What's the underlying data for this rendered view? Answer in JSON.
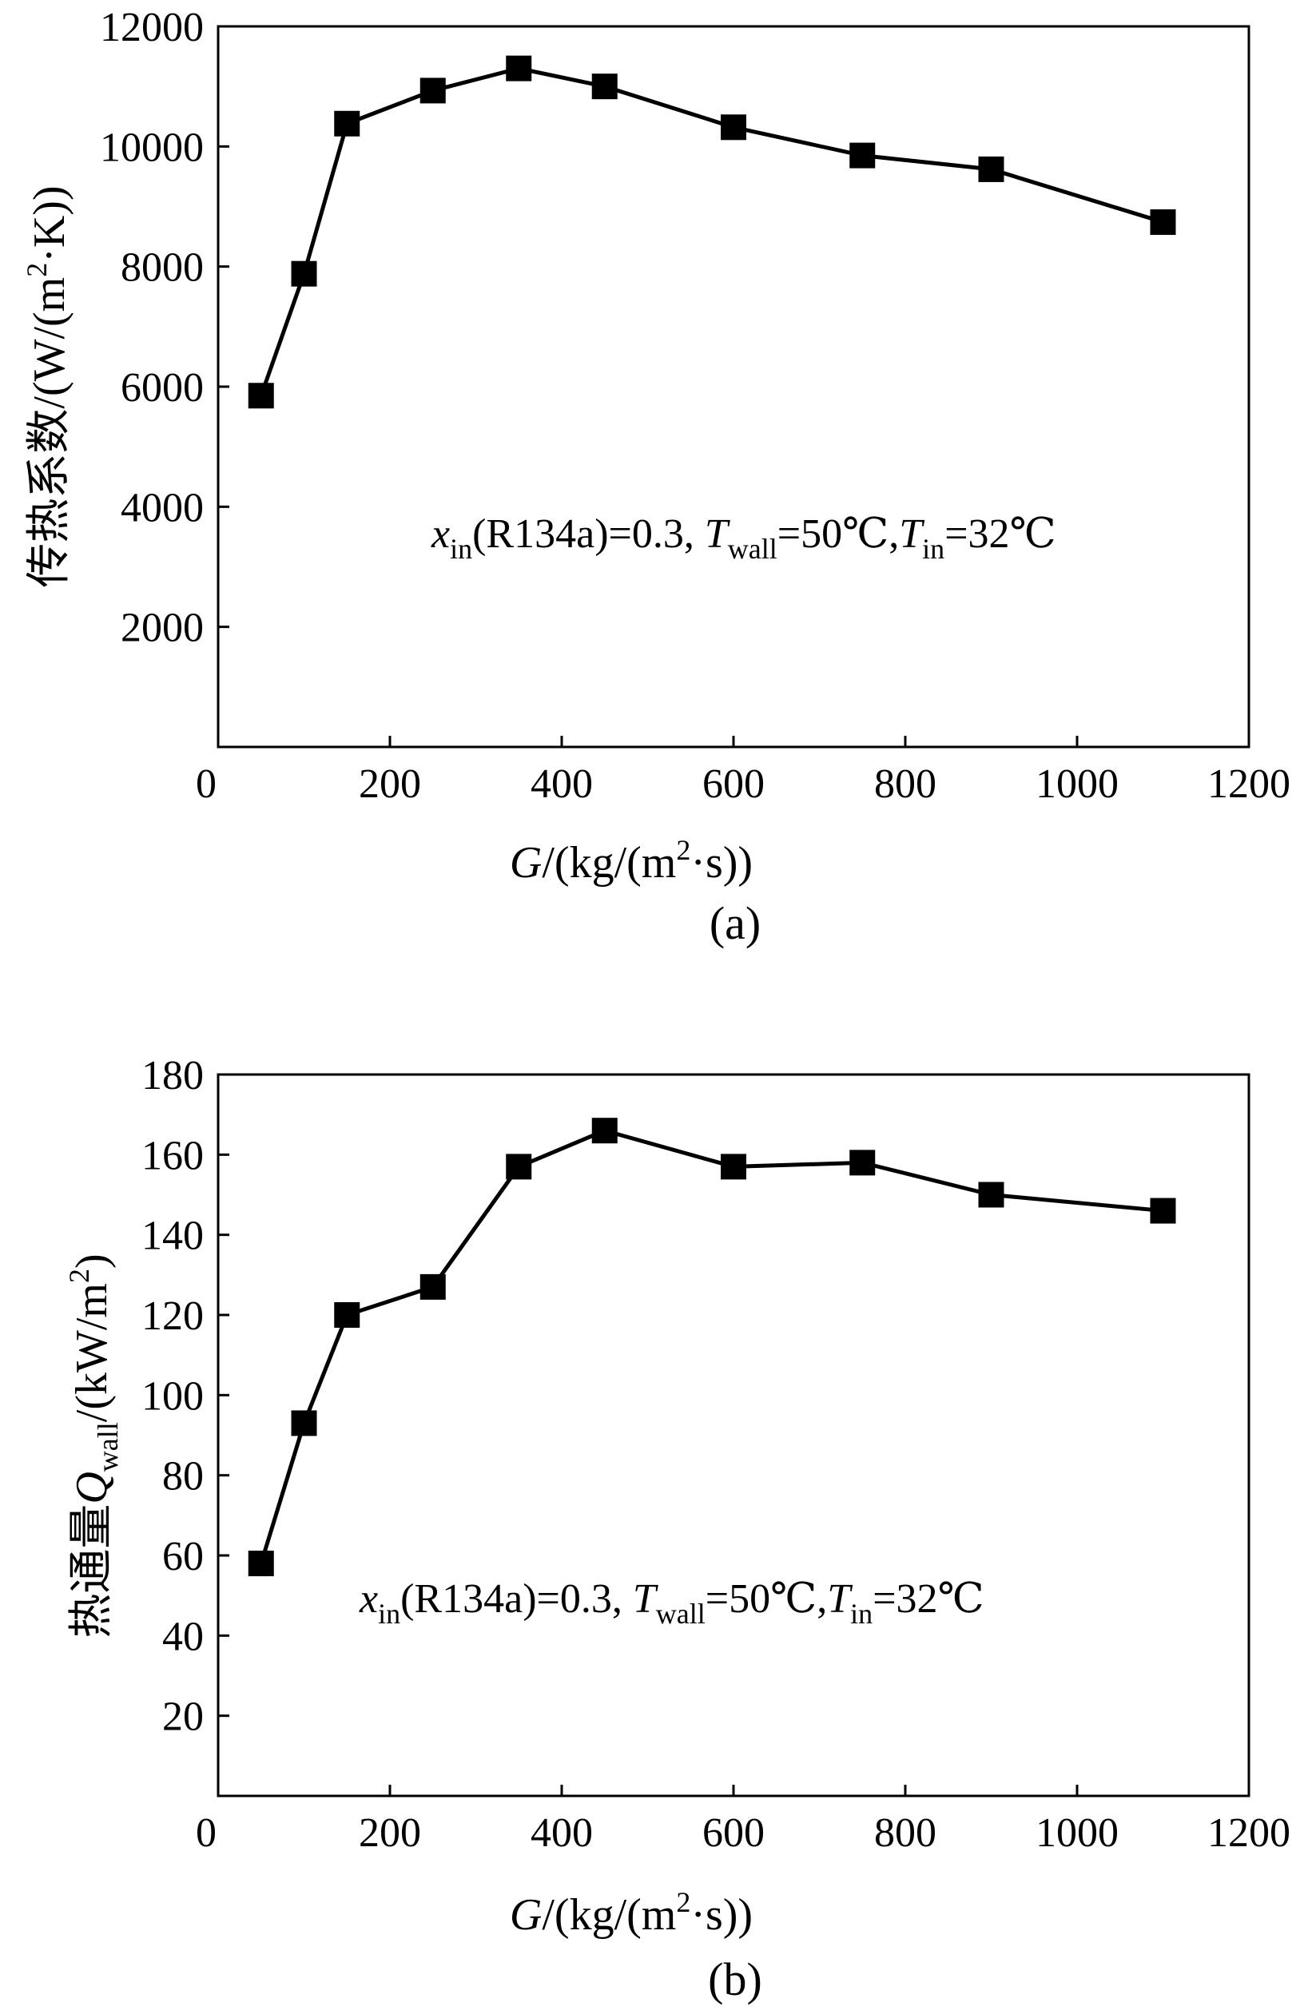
{
  "charts": [
    {
      "caption": "(a)",
      "ylabel_prefix": "传热系数/(W/(m",
      "ylabel_sup": "2",
      "ylabel_suffix": "·K))",
      "annotation": {
        "x_sym": "x",
        "x_sub": "in",
        "x_rest": "(R134a)=0.3, ",
        "tw_sym": "T",
        "tw_sub": "wall",
        "tw_rest": "=50℃,",
        "ti_sym": "T",
        "ti_sub": "in",
        "ti_rest": "=32℃"
      }
    },
    {
      "caption": "(b)",
      "ylabel_prefix": "热通量",
      "ylabel_sym": "Q",
      "ylabel_sub": "wall",
      "ylabel_mid": "/(kW/m",
      "ylabel_sup": "2",
      "ylabel_suffix": ")",
      "annotation": {
        "x_sym": "x",
        "x_sub": "in",
        "x_rest": "(R134a)=0.3, ",
        "tw_sym": "T",
        "tw_sub": "wall",
        "tw_rest": "=50℃,",
        "ti_sym": "T",
        "ti_sub": "in",
        "ti_rest": "=32℃"
      }
    }
  ],
  "xlabel": {
    "sym": "G",
    "prefix": "/(kg/(m",
    "sup": "2",
    "suffix": "·s))"
  },
  "chart_data": [
    {
      "type": "line",
      "x": [
        50,
        100,
        150,
        250,
        350,
        450,
        600,
        750,
        900,
        1100
      ],
      "series": [
        {
          "values": [
            5850,
            7880,
            10380,
            10930,
            11300,
            11000,
            10320,
            9850,
            9620,
            8740
          ]
        }
      ],
      "xlim": [
        0,
        1200
      ],
      "ylim": [
        0,
        12000
      ],
      "xticks": [
        0,
        200,
        400,
        600,
        800,
        1000,
        1200
      ],
      "yticks": [
        2000,
        4000,
        6000,
        8000,
        10000,
        12000
      ],
      "x_origin_label": "0",
      "grid": false,
      "marker": "square",
      "color": "#000000"
    },
    {
      "type": "line",
      "x": [
        50,
        100,
        150,
        250,
        350,
        450,
        600,
        750,
        900,
        1100
      ],
      "series": [
        {
          "values": [
            58,
            93,
            120,
            127,
            157,
            166,
            157,
            158,
            150,
            146
          ]
        }
      ],
      "xlim": [
        0,
        1200
      ],
      "ylim": [
        0,
        180
      ],
      "xticks": [
        0,
        200,
        400,
        600,
        800,
        1000,
        1200
      ],
      "yticks": [
        20,
        40,
        60,
        80,
        100,
        120,
        140,
        160,
        180
      ],
      "x_origin_label": "0",
      "grid": false,
      "marker": "square",
      "color": "#000000"
    }
  ]
}
